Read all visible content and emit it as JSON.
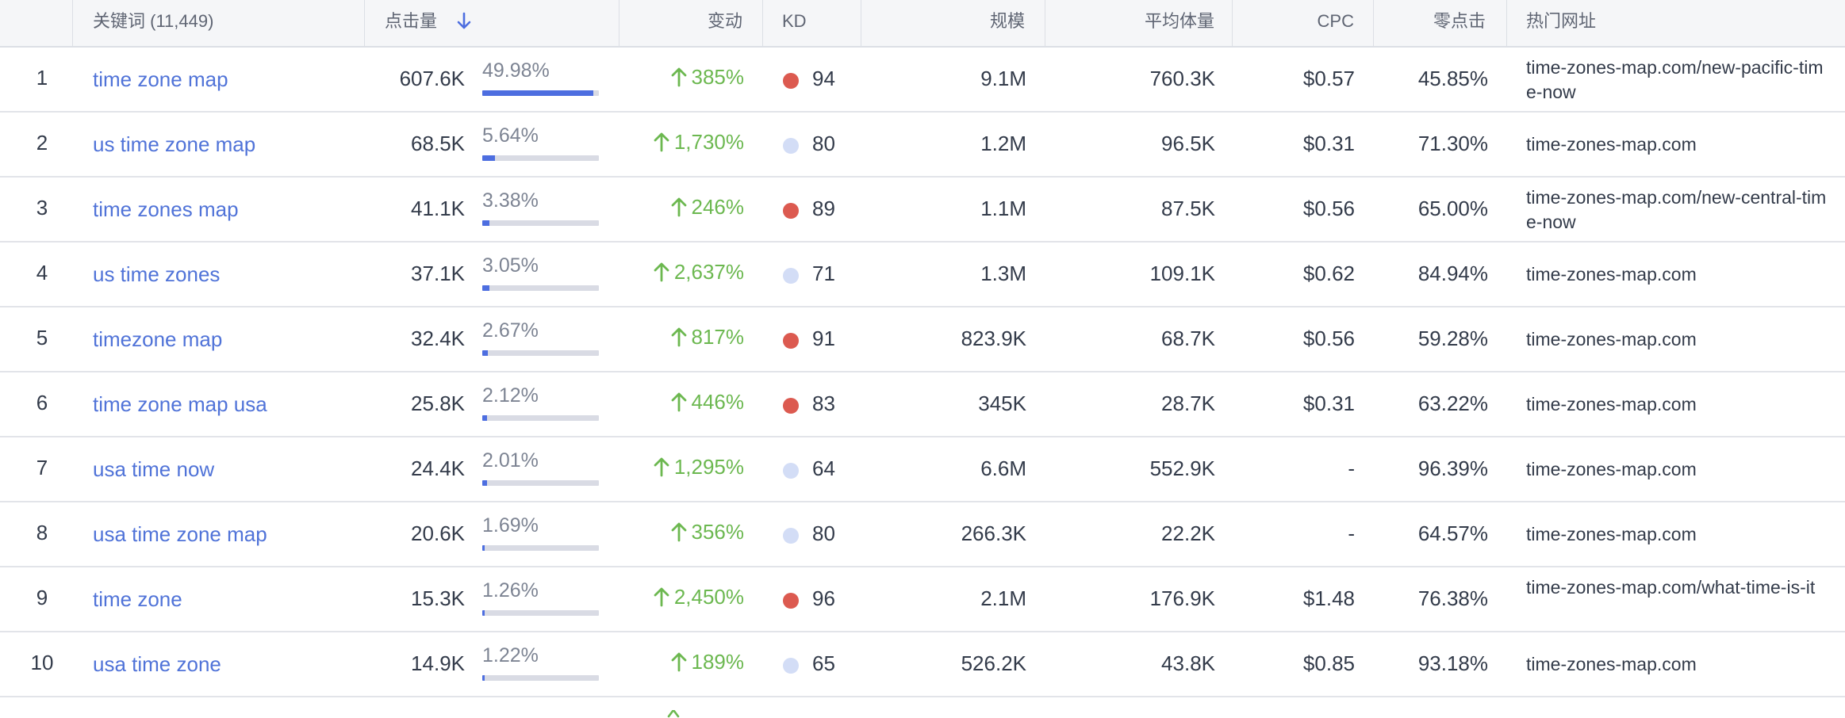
{
  "colors": {
    "link": "#5073d8",
    "positive": "#6cb850",
    "kd_hard": "#dc5a50",
    "kd_easy": "#d3ddf6",
    "bar": "#4d6ee0"
  },
  "header": {
    "keyword": "关键词 (11,449)",
    "clicks": "点击量",
    "sort_icon": "arrow-down-icon",
    "change": "变动",
    "kd": "KD",
    "volume": "规模",
    "avg_volume": "平均体量",
    "cpc": "CPC",
    "zero_click": "零点击",
    "top_url": "热门网址"
  },
  "rows": [
    {
      "num": "1",
      "keyword": "time zone map",
      "clicks": "607.6K",
      "pct": "49.98%",
      "bar": 0.4998,
      "change": "385%",
      "kd_level": "hard",
      "kd": "94",
      "volume": "9.1M",
      "avg": "760.3K",
      "cpc": "$0.57",
      "zero": "45.85%",
      "url": "time-zones-map.com/new-pacific-time-now"
    },
    {
      "num": "2",
      "keyword": "us time zone map",
      "clicks": "68.5K",
      "pct": "5.64%",
      "bar": 0.0564,
      "change": "1,730%",
      "kd_level": "easy",
      "kd": "80",
      "volume": "1.2M",
      "avg": "96.5K",
      "cpc": "$0.31",
      "zero": "71.30%",
      "url": "time-zones-map.com"
    },
    {
      "num": "3",
      "keyword": "time zones map",
      "clicks": "41.1K",
      "pct": "3.38%",
      "bar": 0.0338,
      "change": "246%",
      "kd_level": "hard",
      "kd": "89",
      "volume": "1.1M",
      "avg": "87.5K",
      "cpc": "$0.56",
      "zero": "65.00%",
      "url": "time-zones-map.com/new-central-time-now"
    },
    {
      "num": "4",
      "keyword": "us time zones",
      "clicks": "37.1K",
      "pct": "3.05%",
      "bar": 0.0305,
      "change": "2,637%",
      "kd_level": "easy",
      "kd": "71",
      "volume": "1.3M",
      "avg": "109.1K",
      "cpc": "$0.62",
      "zero": "84.94%",
      "url": "time-zones-map.com"
    },
    {
      "num": "5",
      "keyword": "timezone map",
      "clicks": "32.4K",
      "pct": "2.67%",
      "bar": 0.0267,
      "change": "817%",
      "kd_level": "hard",
      "kd": "91",
      "volume": "823.9K",
      "avg": "68.7K",
      "cpc": "$0.56",
      "zero": "59.28%",
      "url": "time-zones-map.com"
    },
    {
      "num": "6",
      "keyword": "time zone map usa",
      "clicks": "25.8K",
      "pct": "2.12%",
      "bar": 0.0212,
      "change": "446%",
      "kd_level": "hard",
      "kd": "83",
      "volume": "345K",
      "avg": "28.7K",
      "cpc": "$0.31",
      "zero": "63.22%",
      "url": "time-zones-map.com"
    },
    {
      "num": "7",
      "keyword": "usa time now",
      "clicks": "24.4K",
      "pct": "2.01%",
      "bar": 0.0201,
      "change": "1,295%",
      "kd_level": "easy",
      "kd": "64",
      "volume": "6.6M",
      "avg": "552.9K",
      "cpc": "-",
      "zero": "96.39%",
      "url": "time-zones-map.com"
    },
    {
      "num": "8",
      "keyword": "usa time zone map",
      "clicks": "20.6K",
      "pct": "1.69%",
      "bar": 0.0169,
      "change": "356%",
      "kd_level": "easy",
      "kd": "80",
      "volume": "266.3K",
      "avg": "22.2K",
      "cpc": "-",
      "zero": "64.57%",
      "url": "time-zones-map.com"
    },
    {
      "num": "9",
      "keyword": "time zone",
      "clicks": "15.3K",
      "pct": "1.26%",
      "bar": 0.0126,
      "change": "2,450%",
      "kd_level": "hard",
      "kd": "96",
      "volume": "2.1M",
      "avg": "176.9K",
      "cpc": "$1.48",
      "zero": "76.38%",
      "url": "time-zones-map.com/what-time-is-it"
    },
    {
      "num": "10",
      "keyword": "usa time zone",
      "clicks": "14.9K",
      "pct": "1.22%",
      "bar": 0.0122,
      "change": "189%",
      "kd_level": "easy",
      "kd": "65",
      "volume": "526.2K",
      "avg": "43.8K",
      "cpc": "$0.85",
      "zero": "93.18%",
      "url": "time-zones-map.com"
    }
  ]
}
